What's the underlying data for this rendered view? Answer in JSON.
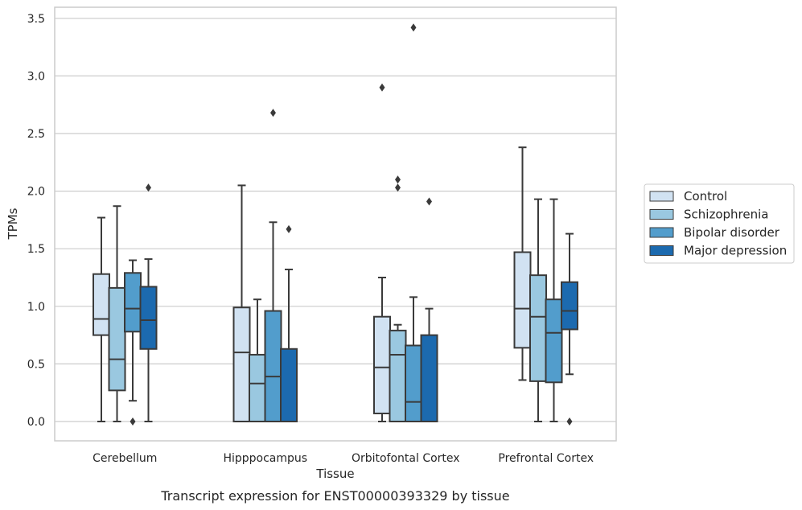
{
  "chart_data": {
    "type": "box",
    "caption": "Transcript expression for ENST00000393329 by tissue",
    "xlabel": "Tissue",
    "ylabel": "TPMs",
    "ylim": [
      -0.17,
      3.6
    ],
    "yticks": [
      0.0,
      0.5,
      1.0,
      1.5,
      2.0,
      2.5,
      3.0,
      3.5
    ],
    "ytick_labels": [
      "0.0",
      "0.5",
      "1.0",
      "1.5",
      "2.0",
      "2.5",
      "3.0",
      "3.5"
    ],
    "grid": "horizontal",
    "legend_position": "right",
    "categories": [
      "Cerebellum",
      "Hipppocampus",
      "Orbitofontal Cortex",
      "Prefrontal Cortex"
    ],
    "series": [
      {
        "name": "Control",
        "color": "#d1e2f2",
        "boxes": [
          {
            "whislo": 0.0,
            "q1": 0.75,
            "med": 0.89,
            "q3": 1.28,
            "whishi": 1.77,
            "fliers": []
          },
          {
            "whislo": 0.0,
            "q1": 0.0,
            "med": 0.6,
            "q3": 0.99,
            "whishi": 2.05,
            "fliers": []
          },
          {
            "whislo": 0.0,
            "q1": 0.07,
            "med": 0.47,
            "q3": 0.91,
            "whishi": 1.25,
            "fliers": [
              2.9
            ]
          },
          {
            "whislo": 0.36,
            "q1": 0.64,
            "med": 0.98,
            "q3": 1.47,
            "whishi": 2.38,
            "fliers": []
          }
        ]
      },
      {
        "name": "Schizophrenia",
        "color": "#9ac8e0",
        "boxes": [
          {
            "whislo": 0.0,
            "q1": 0.27,
            "med": 0.54,
            "q3": 1.16,
            "whishi": 1.87,
            "fliers": []
          },
          {
            "whislo": 0.0,
            "q1": 0.0,
            "med": 0.33,
            "q3": 0.58,
            "whishi": 1.06,
            "fliers": []
          },
          {
            "whislo": 0.0,
            "q1": 0.0,
            "med": 0.58,
            "q3": 0.79,
            "whishi": 0.84,
            "fliers": [
              2.03,
              2.1
            ]
          },
          {
            "whislo": 0.0,
            "q1": 0.35,
            "med": 0.91,
            "q3": 1.27,
            "whishi": 1.93,
            "fliers": []
          }
        ]
      },
      {
        "name": "Bipolar disorder",
        "color": "#529dcc",
        "boxes": [
          {
            "whislo": 0.18,
            "q1": 0.78,
            "med": 0.98,
            "q3": 1.29,
            "whishi": 1.4,
            "fliers": [
              0.0
            ]
          },
          {
            "whislo": 0.0,
            "q1": 0.0,
            "med": 0.39,
            "q3": 0.96,
            "whishi": 1.73,
            "fliers": [
              2.68
            ]
          },
          {
            "whislo": 0.0,
            "q1": 0.0,
            "med": 0.17,
            "q3": 0.66,
            "whishi": 1.08,
            "fliers": [
              3.42
            ]
          },
          {
            "whislo": 0.0,
            "q1": 0.34,
            "med": 0.77,
            "q3": 1.06,
            "whishi": 1.93,
            "fliers": []
          }
        ]
      },
      {
        "name": "Major depression",
        "color": "#1c6aaf",
        "boxes": [
          {
            "whislo": 0.0,
            "q1": 0.63,
            "med": 0.88,
            "q3": 1.17,
            "whishi": 1.41,
            "fliers": [
              2.03
            ]
          },
          {
            "whislo": 0.0,
            "q1": 0.0,
            "med": 0.0,
            "q3": 0.63,
            "whishi": 1.32,
            "fliers": [
              1.67
            ]
          },
          {
            "whislo": 0.0,
            "q1": 0.0,
            "med": 0.0,
            "q3": 0.75,
            "whishi": 0.98,
            "fliers": [
              1.91
            ]
          },
          {
            "whislo": 0.41,
            "q1": 0.8,
            "med": 0.96,
            "q3": 1.21,
            "whishi": 1.63,
            "fliers": [
              0.0
            ]
          }
        ]
      }
    ]
  }
}
